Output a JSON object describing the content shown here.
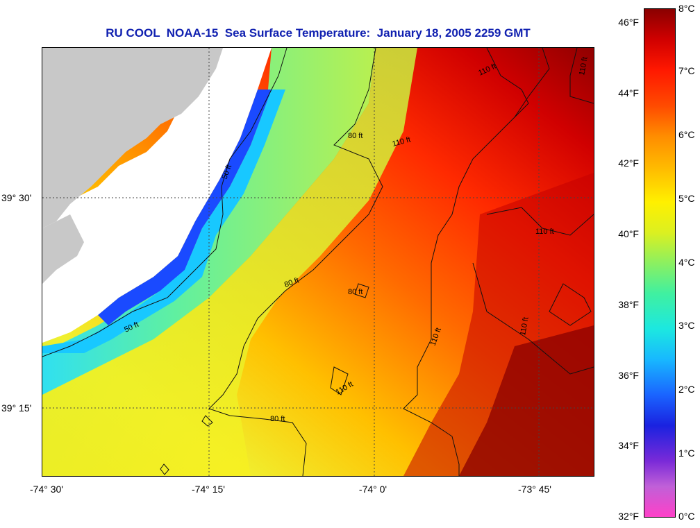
{
  "title": "RU COOL  NOAA-15  Sea Surface Temperature:  January 18, 2005 2259 GMT",
  "map": {
    "longitude_labels": [
      "-74° 30'",
      "-74° 15'",
      "-74° 0'",
      "-73° 45'"
    ],
    "latitude_labels": [
      "39° 30'",
      "39° 15'"
    ],
    "contour_labels": [
      "50 ft",
      "50 ft",
      "80 ft",
      "80 ft",
      "80 ft",
      "80 ft",
      "110 ft",
      "110 ft",
      "110 ft",
      "110 ft",
      "110 ft",
      "110 ft",
      "110 ft"
    ],
    "land_color": "#c8c8c8",
    "coastal_water_color": "#ffffff"
  },
  "colorbar": {
    "fahrenheit_labels": [
      "46°F",
      "44°F",
      "42°F",
      "40°F",
      "38°F",
      "36°F",
      "34°F",
      "32°F"
    ],
    "celsius_labels": [
      "8°C",
      "7°C",
      "6°C",
      "5°C",
      "4°C",
      "3°C",
      "2°C",
      "1°C",
      "0°C"
    ],
    "min_c": 0,
    "max_c": 8
  }
}
